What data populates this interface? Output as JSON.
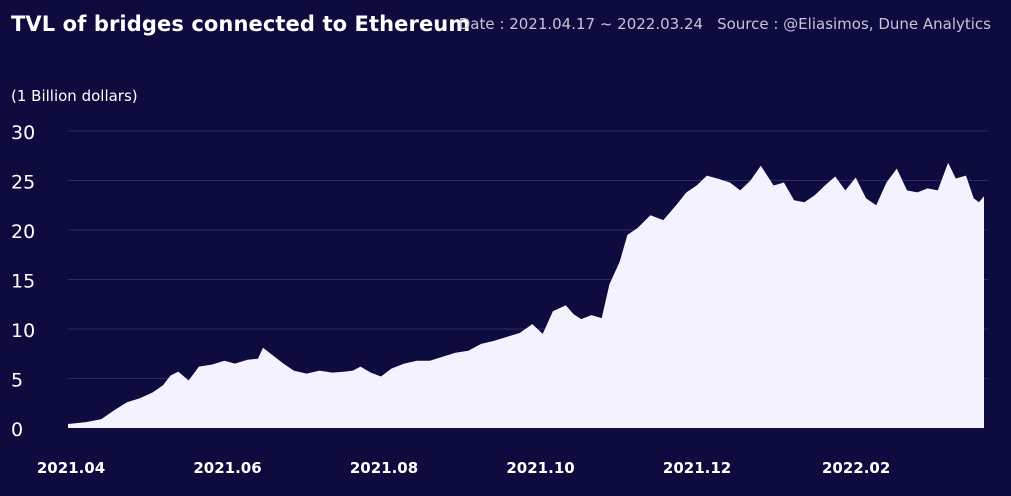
{
  "header": {
    "title": "TVL of bridges connected to Ethereum",
    "date_label": "Date : 2021.04.17 ~ 2022.03.24",
    "source_label": "Source : @Eliasimos, Dune Analytics"
  },
  "colors": {
    "background": "#0e0b3f",
    "area_fill": "#f4f2ff",
    "grid": "#2a2870",
    "text": "#ffffff"
  },
  "chart_data": {
    "type": "area",
    "title": "TVL of bridges connected to Ethereum",
    "unit_label": "(1 Billion dollars)",
    "xlabel": "",
    "ylabel": "",
    "ylim": [
      0,
      30
    ],
    "yticks": [
      0,
      5,
      10,
      15,
      20,
      25,
      30
    ],
    "xlim": [
      "2021-04-01",
      "2022-03-24"
    ],
    "xticks": [
      {
        "date": "2021-04-01",
        "label": "2021.04"
      },
      {
        "date": "2021-06-01",
        "label": "2021.06"
      },
      {
        "date": "2021-08-01",
        "label": "2021.08"
      },
      {
        "date": "2021-10-01",
        "label": "2021.10"
      },
      {
        "date": "2021-12-01",
        "label": "2021.12"
      },
      {
        "date": "2022-02-01",
        "label": "2022.02"
      }
    ],
    "grid": true,
    "series": [
      {
        "values": [
          [
            "2021-04-01",
            0.4
          ],
          [
            "2021-04-08",
            0.6
          ],
          [
            "2021-04-14",
            0.9
          ],
          [
            "2021-04-19",
            1.8
          ],
          [
            "2021-04-24",
            2.6
          ],
          [
            "2021-04-29",
            3.0
          ],
          [
            "2021-05-04",
            3.6
          ],
          [
            "2021-05-08",
            4.3
          ],
          [
            "2021-05-11",
            5.3
          ],
          [
            "2021-05-14",
            5.7
          ],
          [
            "2021-05-18",
            4.8
          ],
          [
            "2021-05-22",
            6.2
          ],
          [
            "2021-05-27",
            6.4
          ],
          [
            "2021-06-01",
            6.8
          ],
          [
            "2021-06-05",
            6.5
          ],
          [
            "2021-06-10",
            6.9
          ],
          [
            "2021-06-14",
            7.0
          ],
          [
            "2021-06-16",
            8.1
          ],
          [
            "2021-06-19",
            7.5
          ],
          [
            "2021-06-24",
            6.5
          ],
          [
            "2021-06-28",
            5.8
          ],
          [
            "2021-07-03",
            5.5
          ],
          [
            "2021-07-08",
            5.8
          ],
          [
            "2021-07-13",
            5.6
          ],
          [
            "2021-07-18",
            5.7
          ],
          [
            "2021-07-21",
            5.8
          ],
          [
            "2021-07-24",
            6.2
          ],
          [
            "2021-07-28",
            5.6
          ],
          [
            "2021-08-01",
            5.2
          ],
          [
            "2021-08-05",
            6.0
          ],
          [
            "2021-08-10",
            6.5
          ],
          [
            "2021-08-15",
            6.8
          ],
          [
            "2021-08-20",
            6.8
          ],
          [
            "2021-08-25",
            7.2
          ],
          [
            "2021-08-30",
            7.6
          ],
          [
            "2021-09-04",
            7.8
          ],
          [
            "2021-09-09",
            8.5
          ],
          [
            "2021-09-14",
            8.8
          ],
          [
            "2021-09-19",
            9.2
          ],
          [
            "2021-09-24",
            9.6
          ],
          [
            "2021-09-29",
            10.5
          ],
          [
            "2021-10-03",
            9.5
          ],
          [
            "2021-10-07",
            11.8
          ],
          [
            "2021-10-12",
            12.4
          ],
          [
            "2021-10-15",
            11.5
          ],
          [
            "2021-10-18",
            11.0
          ],
          [
            "2021-10-22",
            11.4
          ],
          [
            "2021-10-26",
            11.1
          ],
          [
            "2021-10-29",
            14.5
          ],
          [
            "2021-11-02",
            16.8
          ],
          [
            "2021-11-05",
            19.5
          ],
          [
            "2021-11-09",
            20.2
          ],
          [
            "2021-11-14",
            21.5
          ],
          [
            "2021-11-19",
            21.0
          ],
          [
            "2021-11-24",
            22.5
          ],
          [
            "2021-11-28",
            23.8
          ],
          [
            "2021-12-02",
            24.5
          ],
          [
            "2021-12-06",
            25.5
          ],
          [
            "2021-12-10",
            25.2
          ],
          [
            "2021-12-15",
            24.8
          ],
          [
            "2021-12-19",
            24.0
          ],
          [
            "2021-12-23",
            25.0
          ],
          [
            "2021-12-27",
            26.5
          ],
          [
            "2022-01-01",
            24.5
          ],
          [
            "2022-01-05",
            24.8
          ],
          [
            "2022-01-09",
            23.0
          ],
          [
            "2022-01-13",
            22.8
          ],
          [
            "2022-01-17",
            23.5
          ],
          [
            "2022-01-21",
            24.5
          ],
          [
            "2022-01-25",
            25.4
          ],
          [
            "2022-01-29",
            24.0
          ],
          [
            "2022-02-02",
            25.3
          ],
          [
            "2022-02-06",
            23.2
          ],
          [
            "2022-02-10",
            22.5
          ],
          [
            "2022-02-14",
            24.8
          ],
          [
            "2022-02-18",
            26.2
          ],
          [
            "2022-02-22",
            24.0
          ],
          [
            "2022-02-26",
            23.8
          ],
          [
            "2022-03-02",
            24.2
          ],
          [
            "2022-03-06",
            24.0
          ],
          [
            "2022-03-10",
            26.8
          ],
          [
            "2022-03-13",
            25.2
          ],
          [
            "2022-03-17",
            25.5
          ],
          [
            "2022-03-20",
            23.2
          ],
          [
            "2022-03-22",
            22.8
          ],
          [
            "2022-03-24",
            23.4
          ]
        ]
      }
    ]
  }
}
